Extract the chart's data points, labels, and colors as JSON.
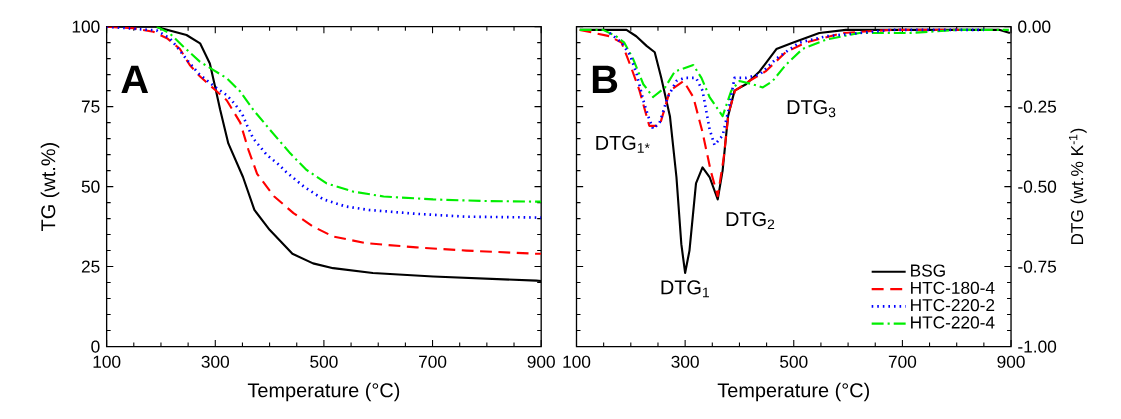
{
  "chart_data": [
    {
      "type": "line",
      "xlabel": "Temperature (°C)",
      "ylabel": "TG (wt.%)",
      "xlim": [
        100,
        900
      ],
      "xticks": [
        100,
        300,
        500,
        700,
        900
      ],
      "ylim": [
        0,
        100
      ],
      "yticks": [
        0,
        25,
        50,
        75,
        100
      ],
      "grid": false,
      "legend": false,
      "annotations": [
        "A"
      ],
      "series": [
        {
          "color": "#000000",
          "line_style": "solid",
          "x": [
            100,
            190,
            247,
            272,
            290,
            300,
            309,
            324,
            351,
            372,
            400,
            442,
            480,
            517,
            590,
            701,
            891,
            900
          ],
          "values": [
            100,
            100,
            97.4,
            94.8,
            88.5,
            81,
            74,
            63.5,
            53,
            42.7,
            36.5,
            29,
            26,
            24.5,
            23,
            21.9,
            20.6,
            20.5
          ]
        },
        {
          "color": "#ff0000",
          "line_style": "dashed",
          "x": [
            100,
            149,
            186,
            211,
            235,
            253,
            272,
            300,
            321,
            346,
            361,
            377,
            408,
            444,
            480,
            517,
            578,
            670,
            762,
            891,
            900
          ],
          "values": [
            100,
            99.5,
            98.4,
            96.4,
            93,
            88,
            84.4,
            80.2,
            77,
            70,
            61.5,
            54,
            47,
            41.7,
            37.5,
            34.4,
            32.3,
            31,
            30,
            29,
            29
          ]
        },
        {
          "color": "#0000ff",
          "line_style": "dotted",
          "x": [
            100,
            192,
            216,
            229,
            247,
            269,
            284,
            303,
            321,
            336,
            349,
            358,
            370,
            395,
            416,
            431,
            463,
            499,
            540,
            583,
            669,
            761,
            865,
            900
          ],
          "values": [
            100,
            98.8,
            96.4,
            93.8,
            89.8,
            85.4,
            83.3,
            80.7,
            78.6,
            75.8,
            72.9,
            69.3,
            65,
            59.9,
            57,
            54.5,
            50,
            46,
            43.8,
            42.7,
            41.5,
            40.6,
            40.4,
            40.3
          ]
        },
        {
          "color": "#00ee00",
          "line_style": "dashdotted",
          "x": [
            192,
            216,
            241,
            272,
            296,
            321,
            346,
            370,
            401,
            438,
            468,
            505,
            555,
            610,
            701,
            793,
            891,
            900
          ],
          "values": [
            100,
            97.9,
            93.8,
            89,
            86.5,
            83.9,
            79.7,
            74,
            67.7,
            60.4,
            55.2,
            51,
            48.4,
            46.9,
            46,
            45.5,
            45.3,
            45.3
          ]
        }
      ]
    },
    {
      "type": "line",
      "xlabel": "Temperature (°C)",
      "ylabel": "DTG (wt.% K$^{-1}$)",
      "xlim": [
        100,
        900
      ],
      "xticks": [
        100,
        300,
        500,
        700,
        900
      ],
      "ylim": [
        -1,
        0
      ],
      "yticks": [
        {
          "value": -1,
          "label": "-1.00"
        },
        {
          "value": -0.75,
          "label": "-0.75"
        },
        {
          "value": -0.5,
          "label": "-0.50"
        },
        {
          "value": -0.25,
          "label": "-0.25"
        },
        {
          "value": 0,
          "label": "0.00"
        }
      ],
      "grid": false,
      "legend": "bottom right",
      "annotations": [
        "B",
        {
          "text": "DTG$_{1*}$",
          "x": 245,
          "y": -0.31
        },
        {
          "text": "DTG$_{1}$",
          "x": 300,
          "y": -0.77
        },
        {
          "text": "DTG$_{2}$",
          "x": 360,
          "y": -0.54
        },
        {
          "text": "DTG$_{3}$",
          "x": 443,
          "y": -0.19
        }
      ],
      "series": [
        {
          "name": "BSG",
          "color": "#000000",
          "line_style": "solid",
          "x": [
            106,
            192,
            210,
            229,
            244,
            256,
            272,
            284,
            293,
            300,
            308,
            320,
            332,
            345,
            360,
            369,
            379,
            391,
            412,
            437,
            468,
            498,
            547,
            596,
            651,
            743,
            835,
            853,
            878,
            898
          ],
          "values": [
            -0.01,
            -0.01,
            -0.03,
            -0.06,
            -0.08,
            -0.16,
            -0.28,
            -0.47,
            -0.68,
            -0.77,
            -0.7,
            -0.49,
            -0.44,
            -0.47,
            -0.54,
            -0.45,
            -0.28,
            -0.2,
            -0.18,
            -0.14,
            -0.07,
            -0.05,
            -0.02,
            -0.01,
            -0.01,
            -0.01,
            -0.01,
            -0.01,
            -0.01,
            -0.02
          ]
        },
        {
          "name": "HTC-180-4",
          "color": "#ff0000",
          "line_style": "dashed",
          "x": [
            106,
            161,
            183,
            199,
            216,
            234,
            253,
            272,
            297,
            315,
            332,
            347,
            360,
            371,
            380,
            392,
            418,
            448,
            485,
            522,
            589,
            681,
            804
          ],
          "values": [
            -0.01,
            -0.03,
            -0.05,
            -0.12,
            -0.2,
            -0.31,
            -0.31,
            -0.2,
            -0.17,
            -0.22,
            -0.33,
            -0.45,
            -0.53,
            -0.41,
            -0.27,
            -0.2,
            -0.17,
            -0.14,
            -0.08,
            -0.05,
            -0.02,
            -0.01,
            -0.01
          ]
        },
        {
          "name": "HTC-220-2",
          "color": "#0000ff",
          "line_style": "dotted",
          "x": [
            161,
            183,
            199,
            211,
            223,
            232,
            241,
            253,
            268,
            284,
            299,
            320,
            332,
            345,
            354,
            369,
            380,
            391,
            412,
            437,
            468,
            510,
            560,
            681,
            850
          ],
          "values": [
            -0.02,
            -0.05,
            -0.09,
            -0.15,
            -0.23,
            -0.28,
            -0.32,
            -0.3,
            -0.22,
            -0.17,
            -0.16,
            -0.16,
            -0.2,
            -0.32,
            -0.37,
            -0.34,
            -0.26,
            -0.16,
            -0.16,
            -0.15,
            -0.1,
            -0.05,
            -0.03,
            -0.01,
            -0.01
          ]
        },
        {
          "name": "HTC-220-4",
          "color": "#00ee00",
          "line_style": "dashdotted",
          "x": [
            106,
            149,
            173,
            188,
            204,
            223,
            241,
            263,
            281,
            315,
            330,
            345,
            369,
            385,
            400,
            424,
            443,
            461,
            485,
            516,
            560,
            621,
            713,
            804,
            896
          ],
          "values": [
            -0.01,
            -0.01,
            -0.03,
            -0.05,
            -0.1,
            -0.18,
            -0.22,
            -0.19,
            -0.14,
            -0.12,
            -0.16,
            -0.22,
            -0.28,
            -0.2,
            -0.17,
            -0.18,
            -0.19,
            -0.17,
            -0.12,
            -0.07,
            -0.04,
            -0.02,
            -0.02,
            -0.01,
            -0.01
          ]
        }
      ]
    }
  ]
}
